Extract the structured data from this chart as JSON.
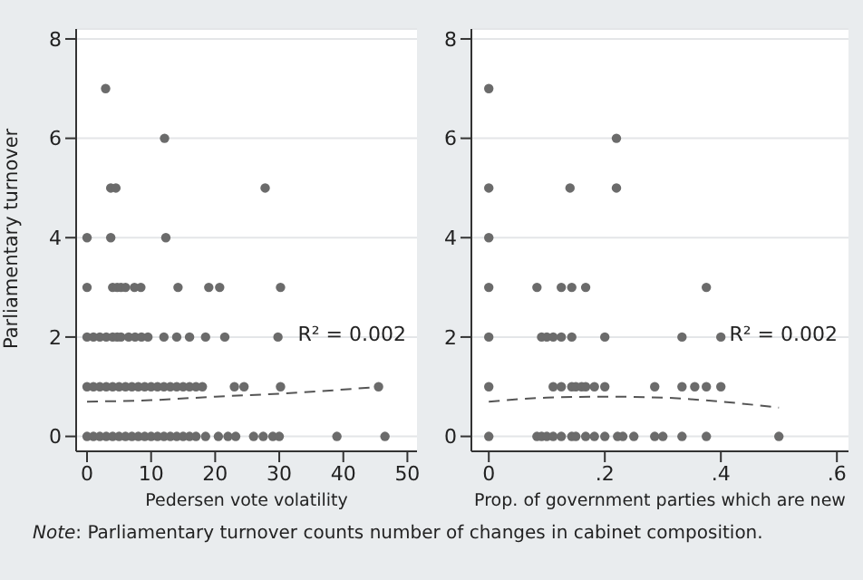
{
  "chart_data": [
    {
      "type": "scatter",
      "xlabel": "Pedersen vote volatility",
      "ylabel": "Parliamentary turnover",
      "xlim": [
        -1.7,
        51.5
      ],
      "ylim": [
        -0.3,
        8.2
      ],
      "xticks": [
        0,
        10,
        20,
        30,
        40,
        50
      ],
      "yticks": [
        0,
        2,
        4,
        6,
        8
      ],
      "grid": "y",
      "marker": "circle",
      "series": [
        {
          "color": "#6b6b6b",
          "x": [
            2.9,
            12.1,
            3.7,
            4.5,
            27.8,
            0,
            3.7,
            12.3,
            0,
            4,
            4.7,
            5.3,
            6,
            7.4,
            8.4,
            14.2,
            19,
            20.7,
            30.2,
            0,
            1,
            2,
            3,
            4,
            4.7,
            5.3,
            6.5,
            7.5,
            8.5,
            9.5,
            12,
            14,
            16,
            18.5,
            21.5,
            29.8,
            0,
            1,
            2,
            3,
            4,
            5,
            6,
            7,
            8,
            9,
            10,
            11,
            12,
            13,
            14,
            15,
            16,
            17,
            18,
            23,
            24.5,
            30.2,
            45.5,
            0,
            1,
            2,
            3,
            4,
            5,
            6,
            7,
            8,
            9,
            10,
            11,
            12,
            13,
            14,
            15,
            16,
            17,
            18.5,
            20.5,
            22,
            23.2,
            26,
            27.5,
            29,
            30,
            39,
            46.5
          ],
          "values": [
            7,
            6,
            5,
            5,
            5,
            4,
            4,
            4,
            3,
            3,
            3,
            3,
            3,
            3,
            3,
            3,
            3,
            3,
            3,
            2,
            2,
            2,
            2,
            2,
            2,
            2,
            2,
            2,
            2,
            2,
            2,
            2,
            2,
            2,
            2,
            2,
            1,
            1,
            1,
            1,
            1,
            1,
            1,
            1,
            1,
            1,
            1,
            1,
            1,
            1,
            1,
            1,
            1,
            1,
            1,
            1,
            1,
            1,
            1,
            0,
            0,
            0,
            0,
            0,
            0,
            0,
            0,
            0,
            0,
            0,
            0,
            0,
            0,
            0,
            0,
            0,
            0,
            0,
            0,
            0,
            0,
            0,
            0,
            0,
            0,
            0,
            0
          ]
        },
        {
          "type": "line",
          "line_style": "dashed",
          "marker": "none",
          "color": "#555555",
          "x": [
            0,
            10,
            20,
            30,
            46
          ],
          "values": [
            0.7,
            0.73,
            0.8,
            0.86,
            1.0
          ]
        }
      ],
      "annotations": [
        "R² = 0.002",
        "Note: Parliamentary turnover counts number of changes in cabinet composition."
      ]
    },
    {
      "type": "scatter",
      "xlabel": "Prop. of government parties which are new",
      "xlim": [
        -0.03,
        0.62
      ],
      "ylim": [
        -0.3,
        8.2
      ],
      "xticks": [
        {
          "value": 0,
          "label": "0"
        },
        {
          "value": 0.2,
          "label": ".2"
        },
        {
          "value": 0.4,
          "label": ".4"
        },
        {
          "value": 0.6,
          "label": ".6"
        }
      ],
      "yticks": [
        0,
        2,
        4,
        6,
        8
      ],
      "grid": "y",
      "marker": "circle",
      "series": [
        {
          "color": "#6b6b6b",
          "x": [
            0,
            0.22,
            0,
            0.14,
            0.22,
            0,
            0,
            0.083,
            0.125,
            0.143,
            0.167,
            0.375,
            0,
            0.091,
            0.1,
            0.111,
            0.125,
            0.143,
            0.2,
            0.333,
            0.4,
            0,
            0.111,
            0.125,
            0.143,
            0.15,
            0.16,
            0.167,
            0.182,
            0.2,
            0.286,
            0.333,
            0.355,
            0.375,
            0.4,
            0,
            0.083,
            0.091,
            0.1,
            0.111,
            0.125,
            0.143,
            0.15,
            0.167,
            0.182,
            0.2,
            0.222,
            0.231,
            0.25,
            0.286,
            0.3,
            0.333,
            0.375,
            0.5
          ],
          "values": [
            7,
            6,
            5,
            5,
            5,
            4,
            3,
            3,
            3,
            3,
            3,
            3,
            2,
            2,
            2,
            2,
            2,
            2,
            2,
            2,
            2,
            1,
            1,
            1,
            1,
            1,
            1,
            1,
            1,
            1,
            1,
            1,
            1,
            1,
            1,
            0,
            0,
            0,
            0,
            0,
            0,
            0,
            0,
            0,
            0,
            0,
            0,
            0,
            0,
            0,
            0,
            0,
            0,
            0
          ]
        },
        {
          "type": "line",
          "line_style": "dashed",
          "marker": "none",
          "color": "#555555",
          "x": [
            0,
            0.1,
            0.2,
            0.3,
            0.4,
            0.5
          ],
          "values": [
            0.7,
            0.78,
            0.8,
            0.78,
            0.7,
            0.58
          ]
        }
      ],
      "annotations": [
        "R² = 0.002"
      ]
    }
  ]
}
